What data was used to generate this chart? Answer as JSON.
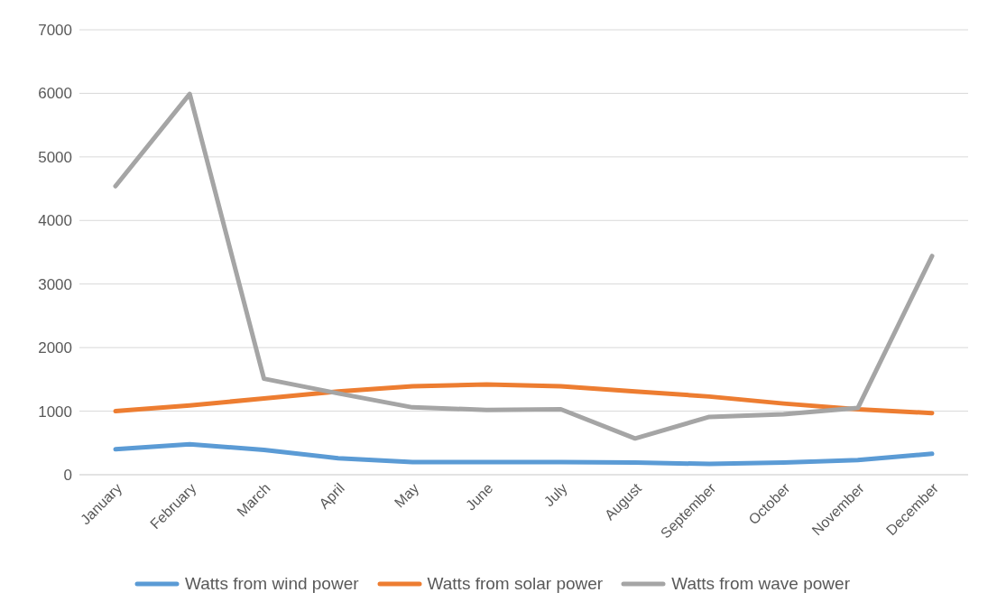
{
  "chart_data": {
    "type": "line",
    "categories": [
      "January",
      "February",
      "March",
      "April",
      "May",
      "June",
      "July",
      "August",
      "September",
      "October",
      "November",
      "December"
    ],
    "series": [
      {
        "name": "Watts from wind power",
        "color": "#5b9bd5",
        "values": [
          400,
          480,
          390,
          260,
          200,
          200,
          200,
          190,
          170,
          190,
          230,
          330
        ]
      },
      {
        "name": "Watts from solar power",
        "color": "#ed7d31",
        "values": [
          1000,
          1090,
          1200,
          1310,
          1390,
          1420,
          1390,
          1310,
          1230,
          1120,
          1030,
          970
        ]
      },
      {
        "name": "Watts from wave power",
        "color": "#a5a5a5",
        "values": [
          4540,
          5990,
          1510,
          1280,
          1060,
          1020,
          1030,
          570,
          910,
          950,
          1050,
          3440
        ]
      }
    ],
    "ylim": [
      0,
      7000
    ],
    "yticks": [
      0,
      1000,
      2000,
      3000,
      4000,
      5000,
      6000,
      7000
    ],
    "grid": "y",
    "legend": "bottom",
    "marker": "none",
    "line_style": "solid"
  }
}
